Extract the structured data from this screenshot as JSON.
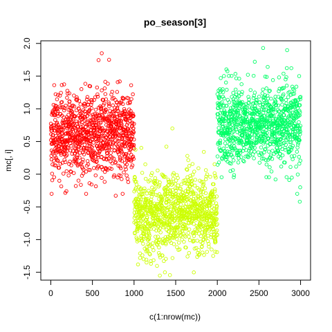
{
  "chart_data": {
    "type": "scatter",
    "title": "po_season[3]",
    "xlabel": "c(1:nrow(mc))",
    "ylabel": "mc[, i]",
    "xlim": [
      -120,
      3120
    ],
    "ylim": [
      -1.62,
      2.04
    ],
    "x_ticks": [
      0,
      500,
      1000,
      1500,
      2000,
      2500,
      3000
    ],
    "x_tick_labels": [
      "0",
      "500",
      "1000",
      "1500",
      "2000",
      "2500",
      "3000"
    ],
    "y_ticks": [
      -1.5,
      -1.0,
      -0.5,
      0.0,
      0.5,
      1.0,
      1.5,
      2.0
    ],
    "y_tick_labels": [
      "-1.5",
      "-1.0",
      "-0.5",
      "0.0",
      "0.5",
      "1.0",
      "1.5",
      "2.0"
    ],
    "grid": false,
    "marker": "open-circle",
    "series": [
      {
        "color": "#ff0000",
        "x_range": [
          1,
          1000
        ],
        "y_center": 0.62,
        "y_spread": 0.32,
        "count": 1000,
        "approx_min": -0.3,
        "approx_max": 1.85,
        "extremes": [
          [
            10,
            -0.3
          ],
          [
            612,
            1.85
          ],
          [
            700,
            1.75
          ],
          [
            780,
            -0.33
          ],
          [
            300,
            -0.18
          ],
          [
            930,
            -0.12
          ]
        ]
      },
      {
        "color": "#ccff00",
        "x_range": [
          1001,
          2000
        ],
        "y_center": -0.6,
        "y_spread": 0.3,
        "count": 1000,
        "approx_min": -1.55,
        "approx_max": 0.7,
        "extremes": [
          [
            1460,
            0.7
          ],
          [
            1310,
            -1.55
          ],
          [
            1370,
            -1.5
          ],
          [
            1640,
            0.28
          ],
          [
            1150,
            -1.35
          ],
          [
            1950,
            -1.25
          ]
        ]
      },
      {
        "color": "#00ff66",
        "x_range": [
          2001,
          3000
        ],
        "y_center": 0.75,
        "y_spread": 0.3,
        "count": 1000,
        "approx_min": -0.42,
        "approx_max": 1.93,
        "extremes": [
          [
            2550,
            1.93
          ],
          [
            2990,
            -0.42
          ],
          [
            2995,
            -0.2
          ],
          [
            2960,
            -0.3
          ],
          [
            2700,
            -0.08
          ],
          [
            2450,
            1.72
          ]
        ]
      }
    ]
  }
}
